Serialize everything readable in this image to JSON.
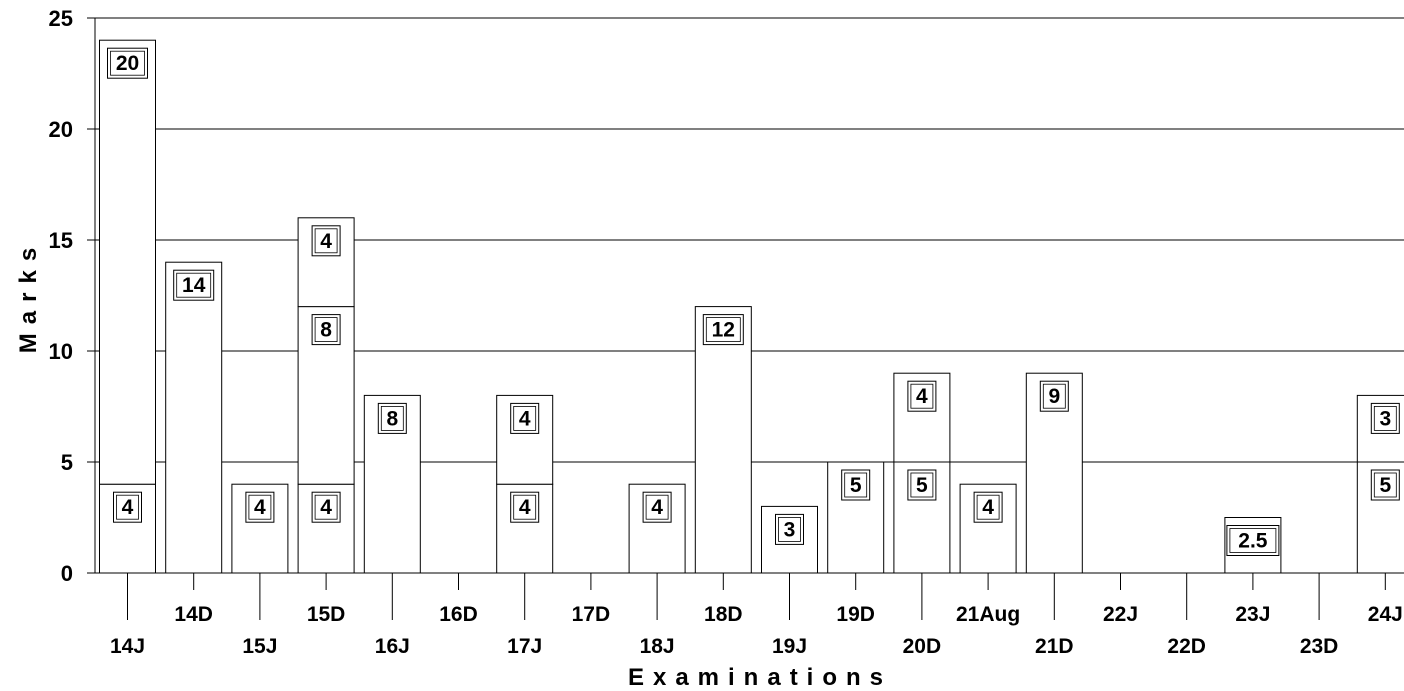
{
  "chart_data": {
    "type": "bar",
    "stacked": true,
    "xlabel": "Examinations",
    "ylabel": "Marks",
    "ylim": [
      0,
      25
    ],
    "yticks": [
      0,
      5,
      10,
      15,
      20,
      25
    ],
    "grid": "horizontal",
    "legend": "none",
    "categories": [
      "14J",
      "14D",
      "15J",
      "15D",
      "16J",
      "16D",
      "17J",
      "17D",
      "18J",
      "18D",
      "19J",
      "19D",
      "20D",
      "21Aug",
      "21D",
      "22J",
      "22D",
      "23J",
      "23D",
      "24J"
    ],
    "stacks": [
      [
        4,
        20
      ],
      [
        14
      ],
      [
        4
      ],
      [
        4,
        8,
        4
      ],
      [
        8
      ],
      [],
      [
        4,
        4
      ],
      [],
      [
        4
      ],
      [
        12
      ],
      [
        3
      ],
      [
        5
      ],
      [
        5,
        4
      ],
      [
        4
      ],
      [
        9
      ],
      [],
      [],
      [
        2.5
      ],
      [],
      [
        5,
        3
      ]
    ]
  }
}
